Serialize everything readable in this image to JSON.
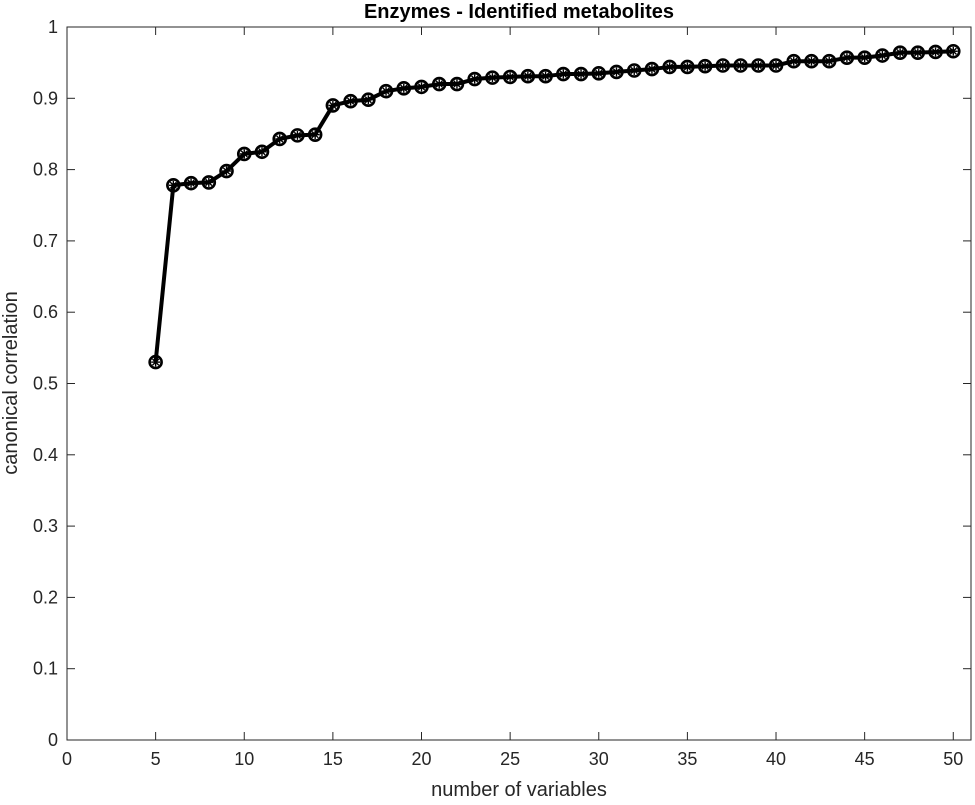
{
  "chart_data": {
    "type": "line",
    "title": "Enzymes - Identified metabolites",
    "xlabel": "number of variables",
    "ylabel": "canonical correlation",
    "xlim": [
      0,
      51
    ],
    "ylim": [
      0,
      1
    ],
    "xticks": [
      0,
      5,
      10,
      15,
      20,
      25,
      30,
      35,
      40,
      45,
      50
    ],
    "yticks": [
      0,
      0.1,
      0.2,
      0.3,
      0.4,
      0.5,
      0.6,
      0.7,
      0.8,
      0.9,
      1
    ],
    "xtick_labels": [
      "0",
      "5",
      "10",
      "15",
      "20",
      "25",
      "30",
      "35",
      "40",
      "45",
      "50"
    ],
    "ytick_labels": [
      "0",
      "0.1",
      "0.2",
      "0.3",
      "0.4",
      "0.5",
      "0.6",
      "0.7",
      "0.8",
      "0.9",
      "1"
    ],
    "grid": false,
    "box": true,
    "series": [
      {
        "color": "#000000",
        "marker": "circle-asterisk",
        "x": [
          5,
          6,
          7,
          8,
          9,
          10,
          11,
          12,
          13,
          14,
          15,
          16,
          17,
          18,
          19,
          20,
          21,
          22,
          23,
          24,
          25,
          26,
          27,
          28,
          29,
          30,
          31,
          32,
          33,
          34,
          35,
          36,
          37,
          38,
          39,
          40,
          41,
          42,
          43,
          44,
          45,
          46,
          47,
          48,
          49,
          50
        ],
        "y": [
          0.53,
          0.778,
          0.781,
          0.782,
          0.798,
          0.822,
          0.825,
          0.843,
          0.848,
          0.849,
          0.89,
          0.896,
          0.898,
          0.91,
          0.914,
          0.916,
          0.92,
          0.92,
          0.927,
          0.929,
          0.93,
          0.931,
          0.931,
          0.934,
          0.934,
          0.935,
          0.937,
          0.939,
          0.941,
          0.944,
          0.944,
          0.945,
          0.946,
          0.946,
          0.946,
          0.946,
          0.952,
          0.952,
          0.952,
          0.957,
          0.957,
          0.96,
          0.964,
          0.964,
          0.965,
          0.966
        ]
      }
    ]
  }
}
